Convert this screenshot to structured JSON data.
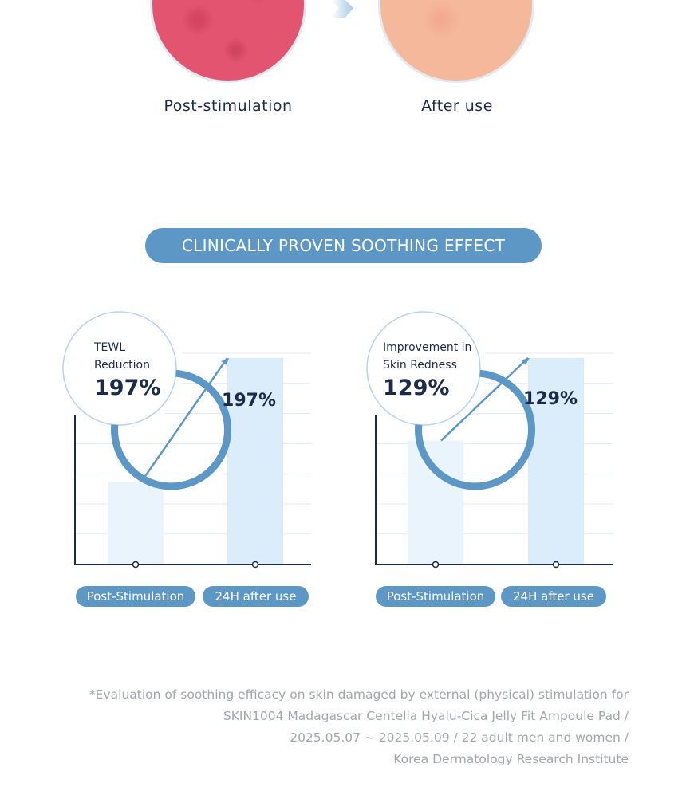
{
  "photos": {
    "before_label": "Post-stimulation",
    "after_label": "After use"
  },
  "section_title": "CLINICALLY PROVEN SOOTHING EFFECT",
  "chart_data": [
    {
      "type": "bar",
      "ring_label_lines": [
        "TEWL",
        "Reduction"
      ],
      "ring_value": "197%",
      "categories": [
        "Post-Stimulation",
        "24H after use"
      ],
      "bar_value_label": "197%",
      "values": [
        2,
        5
      ]
    },
    {
      "type": "bar",
      "ring_label_lines": [
        "Improvement in",
        "Skin Redness"
      ],
      "ring_value": "129%",
      "categories": [
        "Post-Stimulation",
        "24H after use"
      ],
      "bar_value_label": "129%",
      "values": [
        3,
        5
      ]
    }
  ],
  "footnote_lines": [
    "*Evaluation of soothing efficacy on skin damaged by external (physical) stimulation for",
    "SKIN1004 Madagascar Centella Hyalu-Cica Jelly Fit Ampoule Pad /",
    "2025.05.07 ~ 2025.05.09 / 22 adult men and women /",
    "Korea Dermatology Research Institute"
  ],
  "colors": {
    "accent": "#5d97c5",
    "text_dark": "#1d2b4a",
    "bar_before": "#eaf4fd",
    "bar_after": "#dbecfb",
    "grid": "#e3e9f2"
  },
  "icons": {
    "arrow": "arrow-right-icon"
  }
}
